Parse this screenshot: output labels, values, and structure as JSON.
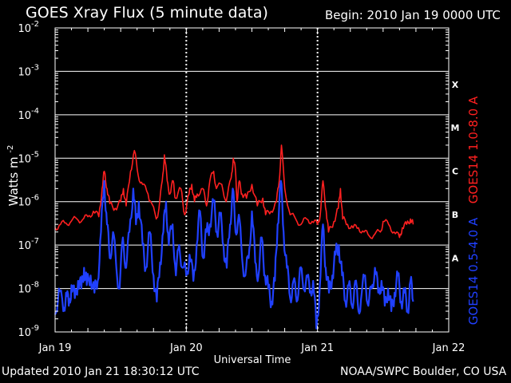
{
  "header": {
    "title": "GOES Xray Flux (5 minute data)",
    "begin": "Begin:  2010 Jan 19 0000 UTC"
  },
  "footer": {
    "updated": "Updated 2010 Jan 21 18:30:12 UTC",
    "credit": "NOAA/SWPC Boulder, CO USA"
  },
  "chart_data": {
    "type": "line",
    "title": "GOES Xray Flux (5 minute data)",
    "xlabel": "Universal Time",
    "ylabel": "Watts m",
    "ylabel_exponent": "-2",
    "y_scale": "log",
    "ylim": [
      1e-09,
      0.01
    ],
    "xlim_hours": [
      0,
      72
    ],
    "x_tick_labels": [
      "Jan 19",
      "Jan 20",
      "Jan 21",
      "Jan 22"
    ],
    "y_tick_labels": [
      {
        "base": "10",
        "exp": "-2"
      },
      {
        "base": "10",
        "exp": "-3"
      },
      {
        "base": "10",
        "exp": "-4"
      },
      {
        "base": "10",
        "exp": "-5"
      },
      {
        "base": "10",
        "exp": "-6"
      },
      {
        "base": "10",
        "exp": "-7"
      },
      {
        "base": "10",
        "exp": "-8"
      },
      {
        "base": "10",
        "exp": "-9"
      }
    ],
    "flare_classes": [
      {
        "label": "X",
        "value": 0.0005
      },
      {
        "label": "M",
        "value": 5e-05
      },
      {
        "label": "C",
        "value": 5e-06
      },
      {
        "label": "B",
        "value": 5e-07
      },
      {
        "label": "A",
        "value": 5e-08
      }
    ],
    "grid": true,
    "series": [
      {
        "name": "GOES14 1.0-8.0 A",
        "color": "#ff2020",
        "points": [
          [
            0.0,
            2.5e-07
          ],
          [
            1.0,
            3e-07
          ],
          [
            2.0,
            3.2e-07
          ],
          [
            3.0,
            3.6e-07
          ],
          [
            4.0,
            4e-07
          ],
          [
            5.0,
            3.8e-07
          ],
          [
            6.0,
            4.5e-07
          ],
          [
            7.0,
            6e-07
          ],
          [
            8.0,
            4.5e-07
          ],
          [
            8.6,
            2e-06
          ],
          [
            9.0,
            5e-06
          ],
          [
            9.5,
            2e-06
          ],
          [
            10.0,
            9e-07
          ],
          [
            11.0,
            7e-07
          ],
          [
            12.0,
            1e-06
          ],
          [
            12.5,
            2e-06
          ],
          [
            13.0,
            8e-07
          ],
          [
            13.8,
            5e-06
          ],
          [
            14.5,
            1.5e-05
          ],
          [
            15.2,
            4e-06
          ],
          [
            16.0,
            2.5e-06
          ],
          [
            17.0,
            1.5e-06
          ],
          [
            17.5,
            1e-06
          ],
          [
            18.5,
            4e-07
          ],
          [
            19.0,
            7e-07
          ],
          [
            19.6,
            3e-06
          ],
          [
            20.0,
            1.2e-05
          ],
          [
            20.5,
            3e-06
          ],
          [
            21.0,
            1.5e-06
          ],
          [
            21.6,
            3e-06
          ],
          [
            22.0,
            1.2e-06
          ],
          [
            23.0,
            2e-06
          ],
          [
            23.7,
            5e-07
          ],
          [
            24.5,
            1.5e-06
          ],
          [
            25.0,
            2.5e-06
          ],
          [
            25.5,
            1e-06
          ],
          [
            26.0,
            1.5e-06
          ],
          [
            27.0,
            2e-06
          ],
          [
            27.7,
            8e-07
          ],
          [
            28.3,
            3e-06
          ],
          [
            29.0,
            5e-06
          ],
          [
            29.5,
            2e-06
          ],
          [
            30.5,
            2.5e-06
          ],
          [
            31.3,
            1e-06
          ],
          [
            32.2,
            3.5e-06
          ],
          [
            32.6,
            1e-05
          ],
          [
            33.0,
            5e-06
          ],
          [
            33.3,
            1e-06
          ],
          [
            33.7,
            3e-06
          ],
          [
            34.2,
            1.5e-06
          ],
          [
            35.0,
            1.2e-06
          ],
          [
            36.0,
            2.5e-06
          ],
          [
            37.0,
            8e-07
          ],
          [
            38.0,
            1.2e-06
          ],
          [
            38.5,
            5e-07
          ],
          [
            39.5,
            6e-07
          ],
          [
            40.5,
            1e-06
          ],
          [
            41.0,
            3e-06
          ],
          [
            41.4,
            2e-05
          ],
          [
            42.0,
            2e-06
          ],
          [
            43.0,
            5e-07
          ],
          [
            44.0,
            4e-07
          ],
          [
            45.0,
            3e-07
          ],
          [
            46.0,
            4e-07
          ],
          [
            47.0,
            3.5e-07
          ],
          [
            48.0,
            3e-07
          ],
          [
            48.5,
            5e-07
          ],
          [
            49.0,
            3e-06
          ],
          [
            49.6,
            6e-07
          ],
          [
            50.0,
            2e-07
          ],
          [
            51.0,
            3.5e-07
          ],
          [
            51.8,
            7e-07
          ],
          [
            52.2,
            2e-06
          ],
          [
            52.6,
            4e-07
          ],
          [
            53.5,
            3e-07
          ],
          [
            54.5,
            2.5e-07
          ],
          [
            55.5,
            2.5e-07
          ],
          [
            56.5,
            2e-07
          ],
          [
            57.5,
            1.6e-07
          ],
          [
            58.5,
            1.8e-07
          ],
          [
            59.5,
            2e-07
          ],
          [
            60.0,
            3.5e-07
          ],
          [
            61.0,
            3e-07
          ],
          [
            62.0,
            2e-07
          ],
          [
            63.0,
            1.5e-07
          ],
          [
            63.5,
            2.5e-07
          ],
          [
            64.3,
            3e-07
          ],
          [
            65.0,
            4e-07
          ],
          [
            65.5,
            3e-07
          ]
        ]
      },
      {
        "name": "GOES14 0.5-4.0 A",
        "color": "#2040ff",
        "points": [
          [
            0.0,
            2.5e-09
          ],
          [
            0.7,
            1e-08
          ],
          [
            1.5,
            3e-09
          ],
          [
            2.0,
            8e-09
          ],
          [
            2.5,
            4e-09
          ],
          [
            3.0,
            1.2e-08
          ],
          [
            3.6,
            6e-09
          ],
          [
            4.2,
            1.5e-08
          ],
          [
            4.8,
            1e-08
          ],
          [
            5.3,
            3e-08
          ],
          [
            5.8,
            1.2e-08
          ],
          [
            6.5,
            2e-08
          ],
          [
            7.2,
            8e-09
          ],
          [
            7.8,
            1.5e-08
          ],
          [
            8.4,
            2e-07
          ],
          [
            9.0,
            3e-06
          ],
          [
            9.5,
            3e-07
          ],
          [
            10.0,
            5e-08
          ],
          [
            10.6,
            2e-07
          ],
          [
            11.2,
            3e-08
          ],
          [
            11.8,
            1e-08
          ],
          [
            12.4,
            1.5e-07
          ],
          [
            13.0,
            3e-08
          ],
          [
            13.6,
            2e-07
          ],
          [
            14.3,
            2e-06
          ],
          [
            14.8,
            3e-07
          ],
          [
            15.3,
            1e-06
          ],
          [
            16.0,
            1e-07
          ],
          [
            16.6,
            3e-08
          ],
          [
            17.3,
            2e-07
          ],
          [
            18.0,
            2e-08
          ],
          [
            18.6,
            5e-09
          ],
          [
            19.2,
            4e-08
          ],
          [
            19.8,
            2e-07
          ],
          [
            20.3,
            1e-06
          ],
          [
            20.8,
            1e-07
          ],
          [
            21.5,
            3e-07
          ],
          [
            22.1,
            2e-08
          ],
          [
            22.7,
            1e-07
          ],
          [
            23.4,
            3e-08
          ],
          [
            24.0,
            2e-08
          ],
          [
            24.6,
            6e-08
          ],
          [
            25.3,
            1.5e-08
          ],
          [
            25.9,
            1e-07
          ],
          [
            26.5,
            6e-07
          ],
          [
            27.1,
            5e-08
          ],
          [
            27.7,
            2e-07
          ],
          [
            28.3,
            3e-07
          ],
          [
            29.0,
            1e-06
          ],
          [
            29.6,
            2e-07
          ],
          [
            30.2,
            5e-07
          ],
          [
            30.8,
            1e-07
          ],
          [
            31.4,
            3e-08
          ],
          [
            32.0,
            3e-07
          ],
          [
            32.5,
            2e-06
          ],
          [
            33.0,
            2e-07
          ],
          [
            33.6,
            5e-07
          ],
          [
            34.2,
            5e-08
          ],
          [
            34.8,
            2e-08
          ],
          [
            35.4,
            5e-08
          ],
          [
            36.0,
            6e-07
          ],
          [
            36.6,
            4e-08
          ],
          [
            37.2,
            2e-08
          ],
          [
            37.8,
            1.5e-07
          ],
          [
            38.4,
            2e-08
          ],
          [
            39.0,
            1e-08
          ],
          [
            39.6,
            5e-09
          ],
          [
            40.2,
            1.5e-08
          ],
          [
            40.7,
            3e-07
          ],
          [
            41.3,
            3e-06
          ],
          [
            41.8,
            2e-07
          ],
          [
            42.4,
            3e-08
          ],
          [
            43.0,
            6e-09
          ],
          [
            43.6,
            1.5e-08
          ],
          [
            44.2,
            5e-09
          ],
          [
            44.8,
            3e-08
          ],
          [
            45.4,
            1e-08
          ],
          [
            46.0,
            2e-08
          ],
          [
            46.6,
            8e-09
          ],
          [
            47.2,
            1.5e-08
          ],
          [
            47.8,
            1.2e-09
          ],
          [
            48.4,
            1e-08
          ],
          [
            49.0,
            3e-07
          ],
          [
            49.5,
            3e-08
          ],
          [
            50.1,
            8e-09
          ],
          [
            50.7,
            2e-08
          ],
          [
            51.3,
            6e-08
          ],
          [
            51.9,
            1e-07
          ],
          [
            52.5,
            2e-08
          ],
          [
            53.1,
            5e-09
          ],
          [
            53.7,
            1.2e-08
          ],
          [
            54.3,
            4e-09
          ],
          [
            54.9,
            1.5e-08
          ],
          [
            55.5,
            3e-09
          ],
          [
            56.1,
            8e-09
          ],
          [
            56.7,
            2e-08
          ],
          [
            57.3,
            4e-09
          ],
          [
            57.9,
            1e-08
          ],
          [
            58.5,
            3e-08
          ],
          [
            59.1,
            8e-09
          ],
          [
            59.7,
            1.5e-08
          ],
          [
            60.3,
            4e-09
          ],
          [
            60.9,
            1e-08
          ],
          [
            61.5,
            3e-09
          ],
          [
            62.1,
            8e-09
          ],
          [
            62.7,
            2e-08
          ],
          [
            63.3,
            5e-09
          ],
          [
            63.9,
            8e-09
          ],
          [
            64.5,
            3e-09
          ],
          [
            65.0,
            1.5e-08
          ],
          [
            65.5,
            5e-09
          ]
        ]
      }
    ]
  }
}
